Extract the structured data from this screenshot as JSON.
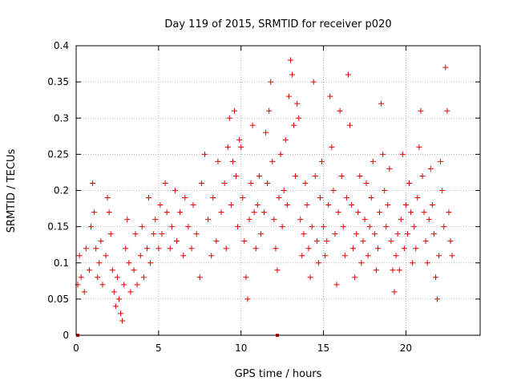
{
  "chart_data": {
    "type": "scatter",
    "title": "Day 119 of 2015, SRMTID for receiver p020",
    "xlabel": "GPS time / hours",
    "ylabel": "SRMTID / TECUs",
    "xlim": [
      0,
      24.5
    ],
    "ylim": [
      0,
      0.4
    ],
    "xticks": [
      0,
      5,
      10,
      15,
      20
    ],
    "xtick_labels": [
      "0",
      "5",
      "10",
      "15",
      "20"
    ],
    "yticks": [
      0,
      0.05,
      0.1,
      0.15,
      0.2,
      0.25,
      0.3,
      0.35,
      0.4
    ],
    "ytick_labels": [
      "0",
      "0.05",
      "0.1",
      "0.15",
      "0.2",
      "0.25",
      "0.3",
      "0.35",
      "0.4"
    ],
    "grid": true,
    "marker": "+",
    "color": "#e00000",
    "series": [
      {
        "name": "SRMTID",
        "sampled_points": [
          [
            0.1,
            0.07
          ],
          [
            0.2,
            0.11
          ],
          [
            0.3,
            0.08
          ],
          [
            0.5,
            0.06
          ],
          [
            0.6,
            0.12
          ],
          [
            0.8,
            0.09
          ],
          [
            0.9,
            0.15
          ],
          [
            1.0,
            0.21
          ],
          [
            1.1,
            0.17
          ],
          [
            1.2,
            0.12
          ],
          [
            1.3,
            0.08
          ],
          [
            1.4,
            0.1
          ],
          [
            1.5,
            0.13
          ],
          [
            1.6,
            0.07
          ],
          [
            1.8,
            0.11
          ],
          [
            1.9,
            0.19
          ],
          [
            2.0,
            0.17
          ],
          [
            2.1,
            0.14
          ],
          [
            2.2,
            0.09
          ],
          [
            2.3,
            0.06
          ],
          [
            2.4,
            0.04
          ],
          [
            2.5,
            0.08
          ],
          [
            2.6,
            0.05
          ],
          [
            2.7,
            0.03
          ],
          [
            2.8,
            0.02
          ],
          [
            2.9,
            0.07
          ],
          [
            3.0,
            0.12
          ],
          [
            3.1,
            0.16
          ],
          [
            3.2,
            0.1
          ],
          [
            3.3,
            0.06
          ],
          [
            3.5,
            0.09
          ],
          [
            3.6,
            0.14
          ],
          [
            3.7,
            0.07
          ],
          [
            3.9,
            0.11
          ],
          [
            4.0,
            0.15
          ],
          [
            4.1,
            0.08
          ],
          [
            4.3,
            0.12
          ],
          [
            4.4,
            0.19
          ],
          [
            4.5,
            0.1
          ],
          [
            4.7,
            0.14
          ],
          [
            4.8,
            0.16
          ],
          [
            5.0,
            0.12
          ],
          [
            5.1,
            0.18
          ],
          [
            5.2,
            0.14
          ],
          [
            5.4,
            0.21
          ],
          [
            5.5,
            0.17
          ],
          [
            5.7,
            0.12
          ],
          [
            5.8,
            0.15
          ],
          [
            6.0,
            0.2
          ],
          [
            6.1,
            0.13
          ],
          [
            6.3,
            0.17
          ],
          [
            6.5,
            0.11
          ],
          [
            6.6,
            0.19
          ],
          [
            6.8,
            0.15
          ],
          [
            7.0,
            0.12
          ],
          [
            7.1,
            0.18
          ],
          [
            7.3,
            0.14
          ],
          [
            7.5,
            0.08
          ],
          [
            7.6,
            0.21
          ],
          [
            7.8,
            0.25
          ],
          [
            8.0,
            0.16
          ],
          [
            8.2,
            0.11
          ],
          [
            8.3,
            0.19
          ],
          [
            8.5,
            0.13
          ],
          [
            8.6,
            0.24
          ],
          [
            8.8,
            0.17
          ],
          [
            9.0,
            0.21
          ],
          [
            9.1,
            0.12
          ],
          [
            9.2,
            0.26
          ],
          [
            9.3,
            0.3
          ],
          [
            9.4,
            0.18
          ],
          [
            9.5,
            0.24
          ],
          [
            9.6,
            0.31
          ],
          [
            9.7,
            0.22
          ],
          [
            9.8,
            0.15
          ],
          [
            9.9,
            0.27
          ],
          [
            10.0,
            0.26
          ],
          [
            10.1,
            0.19
          ],
          [
            10.2,
            0.13
          ],
          [
            10.3,
            0.08
          ],
          [
            10.4,
            0.05
          ],
          [
            10.5,
            0.16
          ],
          [
            10.6,
            0.21
          ],
          [
            10.7,
            0.29
          ],
          [
            10.8,
            0.17
          ],
          [
            10.9,
            0.12
          ],
          [
            11.0,
            0.18
          ],
          [
            11.1,
            0.22
          ],
          [
            11.2,
            0.14
          ],
          [
            11.4,
            0.17
          ],
          [
            11.5,
            0.28
          ],
          [
            11.6,
            0.21
          ],
          [
            11.7,
            0.31
          ],
          [
            11.8,
            0.35
          ],
          [
            11.9,
            0.24
          ],
          [
            12.0,
            0.16
          ],
          [
            12.1,
            0.12
          ],
          [
            12.2,
            0.09
          ],
          [
            12.3,
            0.19
          ],
          [
            12.4,
            0.25
          ],
          [
            12.5,
            0.15
          ],
          [
            12.6,
            0.2
          ],
          [
            12.7,
            0.27
          ],
          [
            12.8,
            0.18
          ],
          [
            12.9,
            0.33
          ],
          [
            13.0,
            0.38
          ],
          [
            13.1,
            0.36
          ],
          [
            13.2,
            0.29
          ],
          [
            13.3,
            0.22
          ],
          [
            13.4,
            0.32
          ],
          [
            13.5,
            0.3
          ],
          [
            13.6,
            0.16
          ],
          [
            13.7,
            0.11
          ],
          [
            13.8,
            0.14
          ],
          [
            13.9,
            0.21
          ],
          [
            14.0,
            0.18
          ],
          [
            14.1,
            0.12
          ],
          [
            14.2,
            0.08
          ],
          [
            14.3,
            0.15
          ],
          [
            14.4,
            0.35
          ],
          [
            14.5,
            0.22
          ],
          [
            14.6,
            0.13
          ],
          [
            14.7,
            0.1
          ],
          [
            14.8,
            0.19
          ],
          [
            14.9,
            0.24
          ],
          [
            15.0,
            0.15
          ],
          [
            15.1,
            0.11
          ],
          [
            15.2,
            0.13
          ],
          [
            15.3,
            0.18
          ],
          [
            15.4,
            0.33
          ],
          [
            15.5,
            0.26
          ],
          [
            15.6,
            0.2
          ],
          [
            15.7,
            0.14
          ],
          [
            15.8,
            0.07
          ],
          [
            15.9,
            0.17
          ],
          [
            16.0,
            0.31
          ],
          [
            16.1,
            0.22
          ],
          [
            16.2,
            0.15
          ],
          [
            16.3,
            0.11
          ],
          [
            16.4,
            0.19
          ],
          [
            16.5,
            0.36
          ],
          [
            16.6,
            0.29
          ],
          [
            16.7,
            0.18
          ],
          [
            16.8,
            0.12
          ],
          [
            16.9,
            0.08
          ],
          [
            17.0,
            0.14
          ],
          [
            17.1,
            0.17
          ],
          [
            17.2,
            0.22
          ],
          [
            17.3,
            0.1
          ],
          [
            17.4,
            0.13
          ],
          [
            17.5,
            0.16
          ],
          [
            17.6,
            0.21
          ],
          [
            17.7,
            0.11
          ],
          [
            17.8,
            0.15
          ],
          [
            17.9,
            0.19
          ],
          [
            18.0,
            0.24
          ],
          [
            18.1,
            0.14
          ],
          [
            18.2,
            0.09
          ],
          [
            18.3,
            0.12
          ],
          [
            18.4,
            0.17
          ],
          [
            18.5,
            0.32
          ],
          [
            18.6,
            0.25
          ],
          [
            18.7,
            0.2
          ],
          [
            18.8,
            0.15
          ],
          [
            18.9,
            0.18
          ],
          [
            19.0,
            0.23
          ],
          [
            19.1,
            0.13
          ],
          [
            19.2,
            0.09
          ],
          [
            19.3,
            0.06
          ],
          [
            19.4,
            0.11
          ],
          [
            19.5,
            0.14
          ],
          [
            19.6,
            0.09
          ],
          [
            19.7,
            0.16
          ],
          [
            19.8,
            0.25
          ],
          [
            19.9,
            0.12
          ],
          [
            20.0,
            0.18
          ],
          [
            20.1,
            0.14
          ],
          [
            20.2,
            0.21
          ],
          [
            20.3,
            0.17
          ],
          [
            20.4,
            0.1
          ],
          [
            20.5,
            0.15
          ],
          [
            20.6,
            0.12
          ],
          [
            20.7,
            0.19
          ],
          [
            20.8,
            0.26
          ],
          [
            20.9,
            0.31
          ],
          [
            21.0,
            0.22
          ],
          [
            21.1,
            0.17
          ],
          [
            21.2,
            0.13
          ],
          [
            21.3,
            0.1
          ],
          [
            21.4,
            0.16
          ],
          [
            21.5,
            0.23
          ],
          [
            21.6,
            0.18
          ],
          [
            21.7,
            0.14
          ],
          [
            21.8,
            0.08
          ],
          [
            21.9,
            0.05
          ],
          [
            22.0,
            0.11
          ],
          [
            22.1,
            0.24
          ],
          [
            22.2,
            0.2
          ],
          [
            22.3,
            0.15
          ],
          [
            22.4,
            0.37
          ],
          [
            22.5,
            0.31
          ],
          [
            22.6,
            0.17
          ],
          [
            22.7,
            0.13
          ],
          [
            22.8,
            0.11
          ]
        ]
      }
    ],
    "baseline_markers": [
      [
        0.1,
        0
      ],
      [
        12.2,
        0
      ]
    ]
  }
}
